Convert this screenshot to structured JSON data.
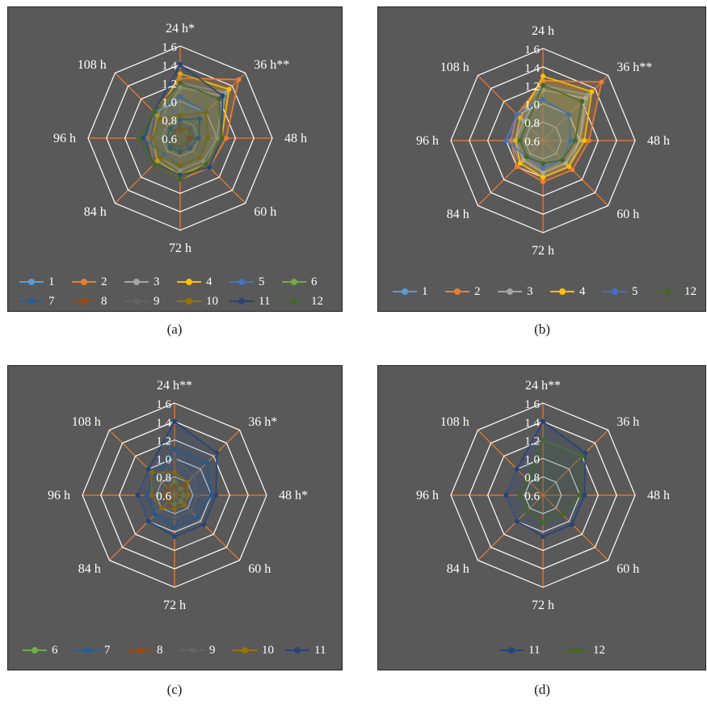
{
  "colors": {
    "panel_bg": "#595959",
    "grid_ring": "#ffffff",
    "grid_spoke": "#ED7D31",
    "text": "#ffffff"
  },
  "series_colors": {
    "1": "#5B9BD5",
    "2": "#ED7D31",
    "3": "#A5A5A5",
    "4": "#FFC000",
    "5": "#4472C4",
    "6": "#70AD47",
    "7": "#255E91",
    "8": "#9E480E",
    "9": "#636363",
    "10": "#997300",
    "11": "#264478",
    "12": "#43682B"
  },
  "panels": [
    {
      "caption": "(a)",
      "chart_data": {
        "type": "radar",
        "categories": [
          "24 h*",
          "36 h**",
          "48 h",
          "60 h",
          "72 h",
          "84 h",
          "96 h",
          "108 h"
        ],
        "scale": {
          "min": 0.6,
          "max": 1.6,
          "step": 0.2
        },
        "tick_labels": [
          "0.6",
          "0.8",
          "1.0",
          "1.2",
          "1.4",
          "1.6"
        ],
        "legend_position": "bottom",
        "series": [
          {
            "name": "1",
            "values": [
              1.2,
              1.3,
              1.0,
              1.0,
              1.0,
              0.95,
              0.95,
              1.0
            ]
          },
          {
            "name": "2",
            "values": [
              1.25,
              1.5,
              1.1,
              1.05,
              1.05,
              1.0,
              0.95,
              1.0
            ]
          },
          {
            "name": "3",
            "values": [
              1.15,
              1.25,
              1.0,
              0.95,
              0.95,
              0.9,
              0.9,
              0.9
            ]
          },
          {
            "name": "4",
            "values": [
              1.3,
              1.35,
              1.05,
              1.0,
              1.0,
              0.95,
              0.9,
              0.95
            ]
          },
          {
            "name": "5",
            "values": [
              1.05,
              1.0,
              0.9,
              0.9,
              0.9,
              0.85,
              1.0,
              1.0
            ]
          },
          {
            "name": "6",
            "values": [
              0.75,
              0.7,
              0.7,
              0.7,
              0.7,
              0.7,
              0.7,
              0.7
            ]
          },
          {
            "name": "7",
            "values": [
              0.8,
              0.9,
              0.8,
              0.75,
              0.75,
              0.75,
              0.75,
              0.75
            ]
          },
          {
            "name": "8",
            "values": [
              0.7,
              0.75,
              0.7,
              0.7,
              0.7,
              0.7,
              0.7,
              0.7
            ]
          },
          {
            "name": "9",
            "values": [
              0.75,
              0.75,
              0.75,
              0.7,
              0.7,
              0.7,
              0.7,
              0.7
            ]
          },
          {
            "name": "10",
            "values": [
              0.85,
              1.0,
              0.9,
              0.9,
              0.9,
              0.9,
              0.9,
              0.9
            ]
          },
          {
            "name": "11",
            "values": [
              1.4,
              1.25,
              1.05,
              1.05,
              1.0,
              1.0,
              1.0,
              1.0
            ]
          },
          {
            "name": "12",
            "values": [
              1.2,
              1.2,
              1.05,
              1.0,
              1.05,
              1.0,
              1.05,
              1.0
            ]
          }
        ]
      }
    },
    {
      "caption": "(b)",
      "chart_data": {
        "type": "radar",
        "categories": [
          "24 h",
          "36 h**",
          "48 h",
          "60 h",
          "72 h",
          "84 h",
          "96 h",
          "108 h"
        ],
        "scale": {
          "min": 0.6,
          "max": 1.6,
          "step": 0.2
        },
        "tick_labels": [
          "0.6",
          "0.8",
          "1.0",
          "1.2",
          "1.4",
          "1.6"
        ],
        "legend_position": "bottom",
        "series": [
          {
            "name": "1",
            "values": [
              1.2,
              1.3,
              1.0,
              1.0,
              1.0,
              0.95,
              0.95,
              1.0
            ]
          },
          {
            "name": "2",
            "values": [
              1.25,
              1.5,
              1.1,
              1.05,
              1.05,
              1.0,
              0.95,
              1.0
            ]
          },
          {
            "name": "3",
            "values": [
              1.15,
              1.25,
              1.0,
              0.95,
              0.95,
              0.9,
              0.9,
              0.9
            ]
          },
          {
            "name": "4",
            "values": [
              1.3,
              1.35,
              1.05,
              1.0,
              1.0,
              0.95,
              0.9,
              0.95
            ]
          },
          {
            "name": "5",
            "values": [
              1.05,
              1.0,
              0.9,
              0.9,
              0.9,
              0.85,
              1.0,
              1.0
            ]
          },
          {
            "name": "12",
            "values": [
              1.2,
              1.2,
              0.95,
              0.9,
              0.85,
              0.85,
              0.85,
              0.85
            ]
          }
        ]
      }
    },
    {
      "caption": "(c)",
      "chart_data": {
        "type": "radar",
        "categories": [
          "24 h**",
          "36 h*",
          "48 h*",
          "60 h",
          "72 h",
          "84 h",
          "96 h",
          "108 h"
        ],
        "scale": {
          "min": 0.6,
          "max": 1.6,
          "step": 0.2
        },
        "tick_labels": [
          "0.6",
          "0.8",
          "1.0",
          "1.2",
          "1.4",
          "1.6"
        ],
        "legend_position": "bottom",
        "series": [
          {
            "name": "6",
            "values": [
              0.75,
              0.7,
              0.7,
              0.7,
              0.7,
              0.7,
              0.7,
              0.7
            ]
          },
          {
            "name": "7",
            "values": [
              1.1,
              1.1,
              1.0,
              0.95,
              0.95,
              0.9,
              0.9,
              0.9
            ]
          },
          {
            "name": "8",
            "values": [
              0.7,
              0.75,
              0.75,
              0.75,
              0.75,
              0.7,
              0.7,
              0.7
            ]
          },
          {
            "name": "9",
            "values": [
              1.0,
              0.9,
              0.85,
              0.85,
              0.85,
              0.85,
              0.85,
              0.85
            ]
          },
          {
            "name": "10",
            "values": [
              0.85,
              0.8,
              0.75,
              0.75,
              0.75,
              0.8,
              0.85,
              0.95
            ]
          },
          {
            "name": "11",
            "values": [
              1.4,
              1.25,
              1.05,
              1.05,
              1.05,
              1.0,
              1.0,
              1.0
            ]
          }
        ]
      }
    },
    {
      "caption": "(d)",
      "chart_data": {
        "type": "radar",
        "categories": [
          "24 h**",
          "36 h",
          "48 h",
          "60 h",
          "72 h",
          "84 h",
          "96 h",
          "108 h"
        ],
        "scale": {
          "min": 0.6,
          "max": 1.6,
          "step": 0.2
        },
        "tick_labels": [
          "0.6",
          "0.8",
          "1.0",
          "1.2",
          "1.4",
          "1.6"
        ],
        "legend_position": "bottom",
        "series": [
          {
            "name": "11",
            "values": [
              1.4,
              1.25,
              1.05,
              1.05,
              1.05,
              1.0,
              1.0,
              1.0
            ]
          },
          {
            "name": "12",
            "values": [
              1.2,
              1.2,
              1.0,
              0.9,
              0.9,
              0.85,
              0.85,
              0.85
            ]
          }
        ]
      }
    }
  ]
}
